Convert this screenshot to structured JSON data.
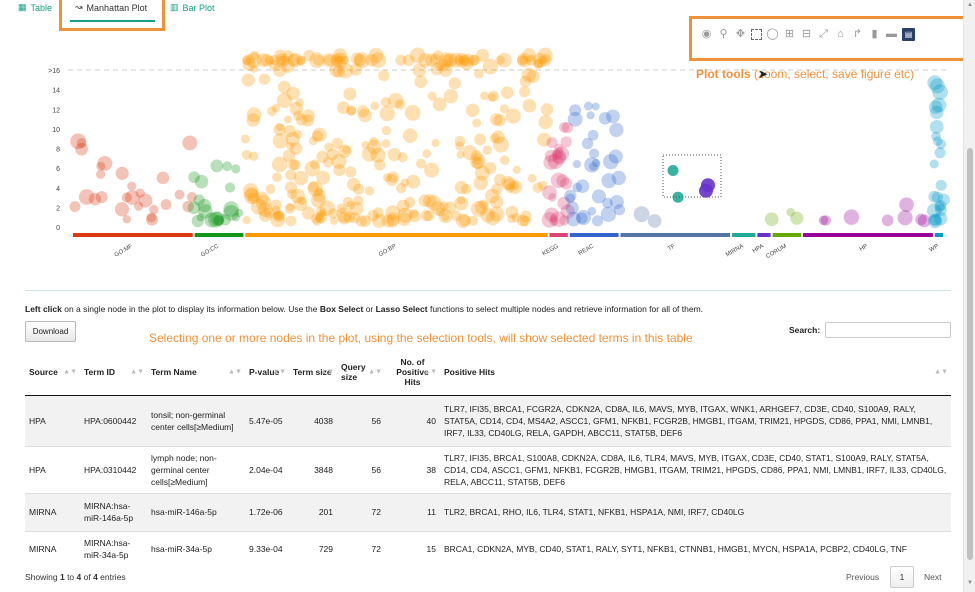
{
  "tabs": [
    {
      "label": "Table",
      "icon": "table-icon"
    },
    {
      "label": "Manhattan Plot",
      "icon": "line-chart-icon"
    },
    {
      "label": "Bar Plot",
      "icon": "bar-chart-icon"
    }
  ],
  "toolbar": {
    "icons": [
      "camera-icon",
      "zoom-icon",
      "pan-icon",
      "box-select-icon",
      "lasso-select-icon",
      "zoom-in-icon",
      "zoom-out-icon",
      "autoscale-icon",
      "reset-axes-icon",
      "spike-lines-icon",
      "hover-closest-icon",
      "hover-compare-icon",
      "plotly-logo-icon"
    ],
    "annotation_bold": "Plot tools",
    "annotation_rest": " (zoom, select, save figure etc)"
  },
  "colors": {
    "GO:MF": "#dc3912",
    "GO:CC": "#109618",
    "GO:BP": "#ff9900",
    "KEGG": "#dd4477",
    "REAC": "#3366cc",
    "TF": "#5574a6",
    "MIRNA": "#22aa99",
    "HPA": "#6633cc",
    "CORUM": "#66aa00",
    "HP": "#990099",
    "WP": "#0099c6",
    "accent": "#16a085",
    "annotation": "#f0923a"
  },
  "chart_data": {
    "type": "scatter",
    "y_tick_labels": [
      ">16",
      "14",
      "12",
      "10",
      "8",
      "6",
      "4",
      "2",
      "0"
    ],
    "y_ticks": [
      16,
      14,
      12,
      10,
      8,
      6,
      4,
      2,
      0
    ],
    "ylim": [
      0,
      17.5
    ],
    "threshold_line": 16,
    "sources": [
      {
        "name": "GO:MF",
        "color": "#dc3912",
        "x_range": [
          0,
          120
        ]
      },
      {
        "name": "GO:CC",
        "color": "#109618",
        "x_range": [
          120,
          170
        ]
      },
      {
        "name": "GO:BP",
        "color": "#ff9900",
        "x_range": [
          170,
          470
        ]
      },
      {
        "name": "KEGG",
        "color": "#dd4477",
        "x_range": [
          470,
          490
        ]
      },
      {
        "name": "REAC",
        "color": "#3366cc",
        "x_range": [
          490,
          540
        ]
      },
      {
        "name": "TF",
        "color": "#5574a6",
        "x_range": [
          540,
          650
        ]
      },
      {
        "name": "MIRNA",
        "color": "#22aa99",
        "x_range": [
          650,
          675
        ]
      },
      {
        "name": "HPA",
        "color": "#6633cc",
        "x_range": [
          675,
          690
        ]
      },
      {
        "name": "CORUM",
        "color": "#66aa00",
        "x_range": [
          690,
          720
        ]
      },
      {
        "name": "HP",
        "color": "#990099",
        "x_range": [
          720,
          850
        ]
      },
      {
        "name": "WP",
        "color": "#0099c6",
        "x_range": [
          850,
          860
        ]
      }
    ],
    "highlighted_points": [
      {
        "source": "MIRNA",
        "term": "hsa-miR-146a-5p",
        "y": 5.76
      },
      {
        "source": "MIRNA",
        "term": "hsa-miR-34a-5p",
        "y": 3.03
      },
      {
        "source": "HPA",
        "term": "tonsil; non-germinal center cells[≥Medium]",
        "y": 4.26
      },
      {
        "source": "HPA",
        "term": "lymph node; non-germinal center cells[≥Medium]",
        "y": 3.69
      }
    ]
  },
  "instructions": {
    "left_click": "Left click",
    "part1": " on a single node in the plot to display its information below. Use the ",
    "box_select": "Box Select",
    "or": " or ",
    "lasso_select": "Lasso Select",
    "part2": " functions to select multiple nodes and retrieve information for all of them."
  },
  "download_label": "Download",
  "table_annotation": "Selecting one or more nodes in the plot, using the selection tools, will show selected terms in this table",
  "search": {
    "label": "Search:",
    "value": ""
  },
  "table": {
    "headers": [
      "Source",
      "Term ID",
      "Term Name",
      "P-value",
      "Term size",
      "Query size",
      "No. of Positive Hits",
      "Positive Hits"
    ],
    "rows": [
      {
        "source": "HPA",
        "term_id": "HPA:0600442",
        "term_name": "tonsil; non-germinal center cells[≥Medium]",
        "p_value": "5.47e-05",
        "term_size": "4038",
        "query_size": "56",
        "positive": "40",
        "hits": "TLR7, IFI35, BRCA1, FCGR2A, CDKN2A, CD8A, IL6, MAVS, MYB, ITGAX, WNK1, ARHGEF7, CD3E, CD40, S100A9, RALY, STAT5A, CD14, CD4, MS4A2, ASCC1, GFM1, NFKB1, FCGR2B, HMGB1, ITGAM, TRIM21, HPGDS, CD86, PPA1, NMI, LMNB1, IRF7, IL33, CD40LG, RELA, GAPDH, ABCC11, STAT5B, DEF6"
      },
      {
        "source": "HPA",
        "term_id": "HPA:0310442",
        "term_name": "lymph node; non-germinal center cells[≥Medium]",
        "p_value": "2.04e-04",
        "term_size": "3848",
        "query_size": "56",
        "positive": "38",
        "hits": "TLR7, IFI35, BRCA1, S100A8, CDKN2A, CD8A, IL6, TLR4, MAVS, MYB, ITGAX, CD3E, CD40, STAT1, S100A9, RALY, STAT5A, CD14, CD4, ASCC1, GFM1, NFKB1, FCGR2B, HMGB1, ITGAM, TRIM21, HPGDS, CD86, PPA1, NMI, LMNB1, IRF7, IL33, CD40LG, RELA, ABCC11, STAT5B, DEF6"
      },
      {
        "source": "MIRNA",
        "term_id": "MIRNA:hsa-miR-146a-5p",
        "term_name": "hsa-miR-146a-5p",
        "p_value": "1.72e-06",
        "term_size": "201",
        "query_size": "72",
        "positive": "11",
        "hits": "TLR2, BRCA1, RHO, IL6, TLR4, STAT1, NFKB1, HSPA1A, NMI, IRF7, CD40LG"
      },
      {
        "source": "MIRNA",
        "term_id": "MIRNA:hsa-miR-34a-5p",
        "term_name": "hsa-miR-34a-5p",
        "p_value": "9.33e-04",
        "term_size": "729",
        "query_size": "72",
        "positive": "15",
        "hits": "BRCA1, CDKN2A, MYB, CD40, STAT1, RALY, SYT1, NFKB1, CTNNB1, HMGB1, MYCN, HSPA1A, PCBP2, CD40LG, TNF"
      }
    ]
  },
  "footer": {
    "info_prefix": "Showing ",
    "start": "1",
    "to": " to ",
    "end": "4",
    "of": " of ",
    "total": "4",
    "suffix": " entries",
    "previous": "Previous",
    "page": "1",
    "next": "Next"
  }
}
